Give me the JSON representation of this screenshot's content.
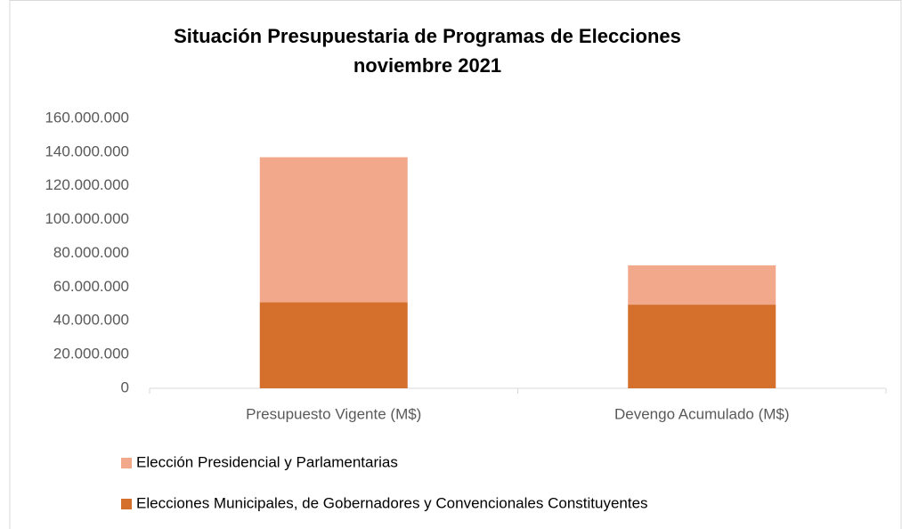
{
  "chart_data": {
    "type": "stacked_bar",
    "title": "Situación Presupuestaria de Programas de Elecciones",
    "subtitle": "noviembre 2021",
    "categories": [
      "Presupuesto Vigente (M$)",
      "Devengo Acumulado (M$)"
    ],
    "series": [
      {
        "name": "Elecciones Municipales, de Gobernadores y Convencionales Constituyentes",
        "color": "#d46f2c",
        "values": [
          51000000,
          49600000
        ]
      },
      {
        "name": "Elección Presidencial y Parlamentarias",
        "color": "#f2a98b",
        "values": [
          86000000,
          23300000
        ]
      }
    ],
    "ylim": [
      0,
      160000000
    ],
    "yticks": [
      0,
      {
        "value": 20000000,
        "label": "20.000.000"
      },
      {
        "value": 40000000,
        "label": "40.000.000"
      },
      {
        "value": 60000000,
        "label": "60.000.000"
      },
      {
        "value": 80000000,
        "label": "80.000.000"
      },
      {
        "value": 100000000,
        "label": "100.000.000"
      },
      {
        "value": 120000000,
        "label": "120.000.000"
      },
      {
        "value": 140000000,
        "label": "140.000.000"
      },
      {
        "value": 160000000,
        "label": "160.000.000"
      }
    ],
    "grid": false,
    "legend": "bottom"
  }
}
